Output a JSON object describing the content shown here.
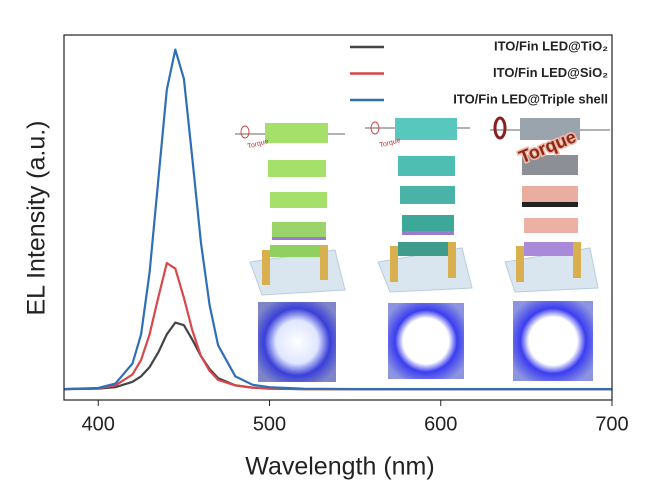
{
  "chart_data": {
    "type": "line",
    "x_label": "Wavelength (nm)",
    "y_label": "EL Intensity (a.u.)",
    "x": [
      380,
      400,
      410,
      420,
      425,
      430,
      435,
      440,
      445,
      450,
      455,
      460,
      465,
      470,
      480,
      490,
      500,
      520,
      550,
      600,
      650,
      700
    ],
    "series": [
      {
        "name": "ITO/Fin LED@TiO₂",
        "color": "#444444",
        "values": [
          3,
          3.1,
          3.5,
          5,
          6.5,
          9,
          13,
          18,
          21.2,
          20.5,
          16.5,
          12,
          8.5,
          6,
          4,
          3.4,
          3.1,
          3,
          3,
          3,
          3,
          3
        ]
      },
      {
        "name": "ITO/Fin LED@SiO₂",
        "color": "#d9474b",
        "values": [
          3,
          3.2,
          4,
          7,
          11,
          18,
          28,
          37.5,
          36,
          28,
          19,
          12,
          8,
          5.5,
          4,
          3.4,
          3.2,
          3,
          3,
          3,
          3,
          3
        ]
      },
      {
        "name": "ITO/Fin LED@Triple shell",
        "color": "#2e6fb7",
        "values": [
          3,
          3.3,
          4.5,
          10,
          18,
          35,
          60,
          85,
          96,
          88,
          66,
          43,
          26,
          15,
          6.5,
          4.2,
          3.5,
          3.1,
          3,
          3,
          3,
          3
        ]
      }
    ],
    "xlim": [
      380,
      700
    ],
    "xticks": [
      400,
      500,
      600,
      700
    ],
    "ylim": [
      0,
      100
    ],
    "annotations": [
      "Torque",
      "Torque",
      "Torque"
    ]
  }
}
